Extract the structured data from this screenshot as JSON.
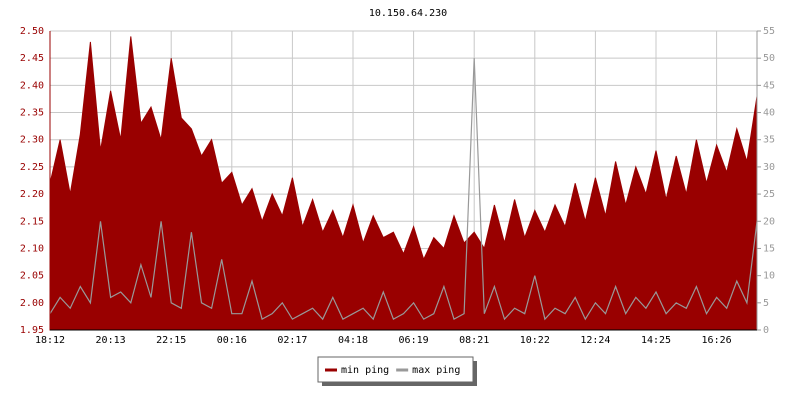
{
  "chart_data": {
    "type": "line",
    "title": "10.150.64.230",
    "categories": [
      "18:12",
      null,
      null,
      null,
      null,
      null,
      "20:13",
      null,
      null,
      null,
      null,
      null,
      "22:15",
      null,
      null,
      null,
      null,
      null,
      "00:16",
      null,
      null,
      null,
      null,
      null,
      "02:17",
      null,
      null,
      null,
      null,
      null,
      "04:18",
      null,
      null,
      null,
      null,
      null,
      "06:19",
      null,
      null,
      null,
      null,
      null,
      "08:21",
      null,
      null,
      null,
      null,
      null,
      "10:22",
      null,
      null,
      null,
      null,
      null,
      "12:24",
      null,
      null,
      null,
      null,
      null,
      "14:25",
      null,
      null,
      null,
      null,
      null,
      "16:26",
      null,
      null,
      null,
      null
    ],
    "series": [
      {
        "name": "min ping",
        "color": "#990000",
        "values": [
          2.22,
          2.3,
          2.2,
          2.31,
          2.48,
          2.28,
          2.39,
          2.3,
          2.49,
          2.33,
          2.36,
          2.3,
          2.45,
          2.34,
          2.32,
          2.27,
          2.3,
          2.22,
          2.24,
          2.18,
          2.21,
          2.15,
          2.2,
          2.16,
          2.23,
          2.14,
          2.19,
          2.13,
          2.17,
          2.12,
          2.18,
          2.11,
          2.16,
          2.12,
          2.13,
          2.09,
          2.14,
          2.08,
          2.12,
          2.1,
          2.16,
          2.11,
          2.13,
          2.1,
          2.18,
          2.11,
          2.19,
          2.12,
          2.17,
          2.13,
          2.18,
          2.14,
          2.22,
          2.15,
          2.23,
          2.16,
          2.26,
          2.18,
          2.25,
          2.2,
          2.28,
          2.19,
          2.27,
          2.2,
          2.3,
          2.22,
          2.29,
          2.24,
          2.32,
          2.26,
          2.38
        ]
      },
      {
        "name": "max ping",
        "color": "#999999",
        "axis": "y2",
        "values": [
          3,
          6,
          4,
          8,
          5,
          20,
          6,
          7,
          5,
          12,
          6,
          20,
          5,
          4,
          18,
          5,
          4,
          13,
          3,
          3,
          9,
          2,
          3,
          5,
          2,
          3,
          4,
          2,
          6,
          2,
          3,
          4,
          2,
          7,
          2,
          3,
          5,
          2,
          3,
          8,
          2,
          3,
          50,
          3,
          8,
          2,
          4,
          3,
          10,
          2,
          4,
          3,
          6,
          2,
          5,
          3,
          8,
          3,
          6,
          4,
          7,
          3,
          5,
          4,
          8,
          3,
          6,
          4,
          9,
          5,
          20
        ]
      }
    ],
    "ylim": [
      1.95,
      2.5
    ],
    "yticks": [
      1.95,
      {
        "value": 2,
        "label": "2.00"
      },
      2.05,
      {
        "value": 2.1,
        "label": "2.10"
      },
      2.15,
      {
        "value": 2.2,
        "label": "2.20"
      },
      2.25,
      {
        "value": 2.3,
        "label": "2.30"
      },
      2.35,
      {
        "value": 2.4,
        "label": "2.40"
      },
      2.45,
      {
        "value": 2.5,
        "label": "2.50"
      }
    ],
    "y2lim": [
      0,
      55
    ],
    "y2ticks": [
      0,
      5,
      10,
      15,
      20,
      25,
      30,
      35,
      40,
      45,
      50,
      55
    ],
    "grid": true
  }
}
